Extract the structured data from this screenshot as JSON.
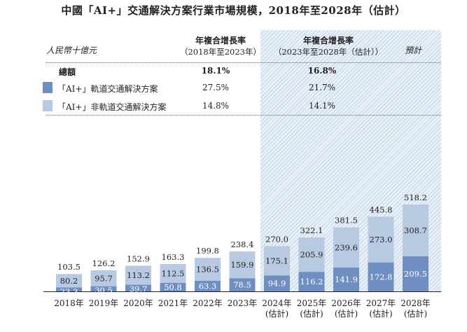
{
  "title": "中國「AI+」交通解決方案行業市場規模，2018年至2028年（估計）",
  "unit": "人民幣十億元",
  "table": {
    "col1_h1": "年複合增長率",
    "col1_h2": "（2018年至2023年）",
    "col2_h1": "年複合增長率",
    "col2_h2": "（2023年至2028年（估計））",
    "forecast_label": "預計",
    "rows": [
      {
        "label": "總額",
        "c1": "18.1%",
        "c2": "16.8%"
      },
      {
        "label": "「AI+」軌道交通解決方案",
        "c1": "27.5%",
        "c2": "21.7%"
      },
      {
        "label": "「AI+」非軌道交通解決方案",
        "c1": "14.8%",
        "c2": "14.1%"
      }
    ]
  },
  "colors": {
    "rail": "#6f8ec2",
    "nonrail": "#b8c9e2",
    "forecast_bg": "#eaf1f8"
  },
  "chart_data": {
    "type": "bar",
    "stacked": true,
    "categories": [
      "2018年",
      "2019年",
      "2020年",
      "2021年",
      "2022年",
      "2023年",
      "2024年\n(估計)",
      "2025年\n(估計)",
      "2026年\n(估計)",
      "2027年\n(估計)",
      "2028年\n(估計)"
    ],
    "series": [
      {
        "name": "「AI+」軌道交通解決方案",
        "values": [
          23.3,
          30.5,
          39.7,
          50.8,
          63.3,
          78.5,
          94.9,
          116.2,
          141.9,
          172.8,
          209.5
        ]
      },
      {
        "name": "「AI+」非軌道交通解決方案",
        "values": [
          80.2,
          95.7,
          113.2,
          112.5,
          136.5,
          159.9,
          175.1,
          205.9,
          239.6,
          273.0,
          308.7
        ]
      }
    ],
    "totals": [
      "103.5",
      "126.2",
      "152.9",
      "163.3",
      "199.8",
      "238.4",
      "270.0",
      "322.1",
      "381.5",
      "445.8",
      "518.2"
    ],
    "rail_labels": [
      "23.3",
      "30.5",
      "39.7",
      "50.8",
      "63.3",
      "78.5",
      "94.9",
      "116.2",
      "141.9",
      "172.8",
      "209.5"
    ],
    "nonrail_labels": [
      "80.2",
      "95.7",
      "113.2",
      "112.5",
      "136.5",
      "159.9",
      "175.1",
      "205.9",
      "239.6",
      "273.0",
      "308.7"
    ],
    "forecast_from_index": 6,
    "ylim": [
      0,
      560
    ]
  }
}
